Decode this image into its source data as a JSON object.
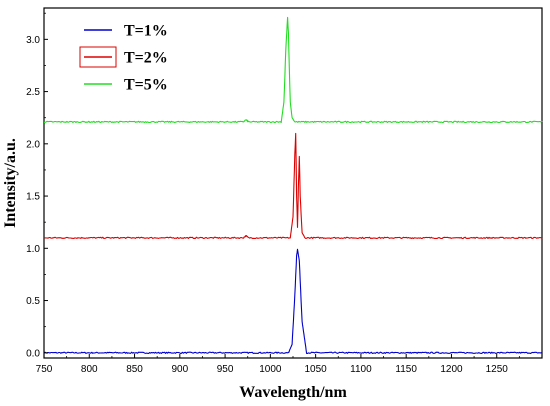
{
  "chart_data": {
    "type": "line",
    "title": "",
    "xlabel": "Wavelength/nm",
    "ylabel": "Intensity/a.u.",
    "xlim": [
      750,
      1300
    ],
    "ylim": [
      -0.05,
      3.3
    ],
    "x_ticks": [
      750,
      800,
      850,
      900,
      950,
      1000,
      1050,
      1100,
      1150,
      1200,
      1250
    ],
    "y_ticks": [
      0.0,
      0.5,
      1.0,
      1.5,
      2.0,
      2.5,
      3.0
    ],
    "x_tick_labels": [
      "750",
      "800",
      "850",
      "900",
      "950",
      "1000",
      "1050",
      "1100",
      "1150",
      "1200",
      "1250"
    ],
    "y_tick_labels": [
      "0.0",
      "0.5",
      "1.0",
      "1.5",
      "2.0",
      "2.5",
      "3.0"
    ],
    "grid": false,
    "legend_position": "top-left",
    "series": [
      {
        "name": "T=1%",
        "color": "#0000cc",
        "baseline": 0.0,
        "x": [
          750,
          1020,
          1024,
          1027,
          1029,
          1030,
          1032,
          1035,
          1040,
          1300
        ],
        "y": [
          0.0,
          0.0,
          0.08,
          0.55,
          0.93,
          0.99,
          0.88,
          0.3,
          0.0,
          0.0
        ]
      },
      {
        "name": "T=2%",
        "color": "#dd0000",
        "baseline": 1.1,
        "x": [
          750,
          970,
          973,
          976,
          1022,
          1025,
          1027,
          1028,
          1029,
          1030,
          1031,
          1032,
          1033,
          1035,
          1038,
          1300
        ],
        "y": [
          1.1,
          1.1,
          1.12,
          1.1,
          1.1,
          1.3,
          1.9,
          2.1,
          1.5,
          1.2,
          1.6,
          1.88,
          1.5,
          1.15,
          1.1,
          1.1
        ]
      },
      {
        "name": "T=5%",
        "color": "#22dd22",
        "baseline": 2.21,
        "x": [
          750,
          970,
          973,
          976,
          1012,
          1015,
          1017,
          1019,
          1020,
          1021,
          1022,
          1024,
          1027,
          1300
        ],
        "y": [
          2.21,
          2.21,
          2.23,
          2.21,
          2.21,
          2.4,
          2.9,
          3.21,
          3.05,
          2.7,
          2.4,
          2.25,
          2.21,
          2.21
        ]
      }
    ]
  }
}
